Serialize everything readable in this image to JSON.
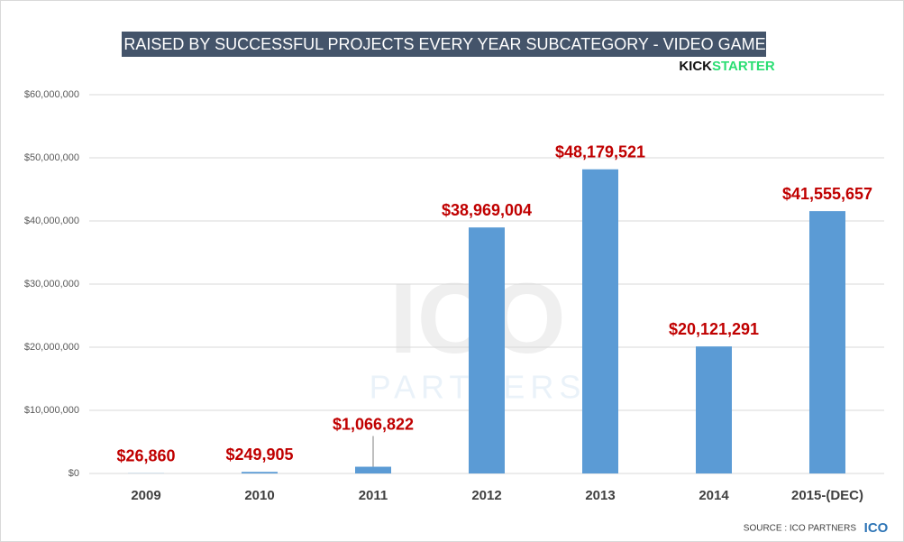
{
  "chart_data": {
    "type": "bar",
    "title": "$ RAISED BY SUCCESSFUL PROJECTS EVERY YEAR SUBCATEGORY - VIDEO GAMES",
    "logo": {
      "kick": "KICK",
      "starter": "STARTER"
    },
    "watermark": {
      "top": "ICO",
      "bottom": "PARTNERS"
    },
    "source": "SOURCE : ICO PARTNERS",
    "source_logo": "ICO",
    "categories": [
      "2009",
      "2010",
      "2011",
      "2012",
      "2013",
      "2014",
      "2015-(DEC)"
    ],
    "values": [
      26860,
      249905,
      1066822,
      38969004,
      48179521,
      20121291,
      41555657
    ],
    "value_labels": [
      "$26,860",
      "$249,905",
      "$1,066,822",
      "$38,969,004",
      "$48,179,521",
      "$20,121,291",
      "$41,555,657"
    ],
    "color": "#5b9bd5",
    "ylim": [
      0,
      60000000
    ],
    "yticks": [
      {
        "value": 0,
        "label": "$0"
      },
      {
        "value": 10000000,
        "label": "$10,000,000"
      },
      {
        "value": 20000000,
        "label": "$20,000,000"
      },
      {
        "value": 30000000,
        "label": "$30,000,000"
      },
      {
        "value": 40000000,
        "label": "$40,000,000"
      },
      {
        "value": 50000000,
        "label": "$50,000,000"
      },
      {
        "value": 60000000,
        "label": "$60,000,000"
      }
    ],
    "grid": true
  }
}
